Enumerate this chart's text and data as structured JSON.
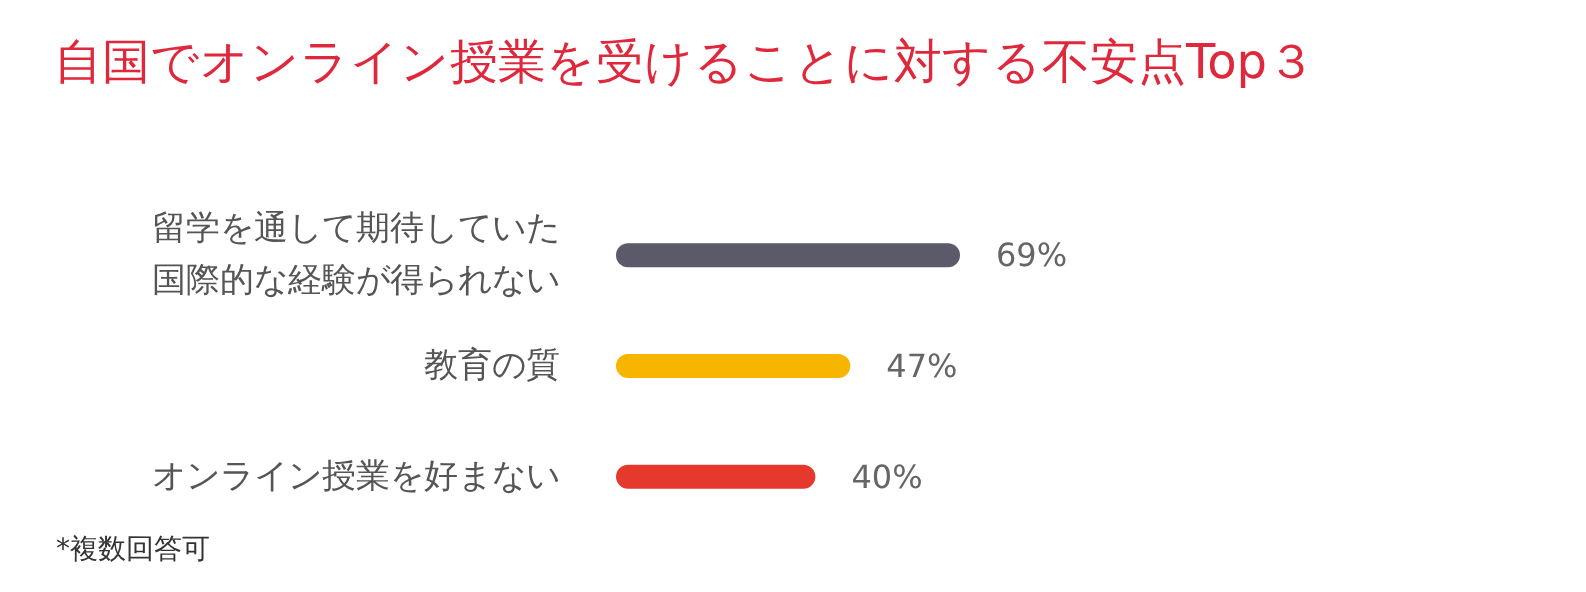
{
  "chart_data": {
    "type": "bar",
    "orientation": "horizontal",
    "title": "自国でオンライン授業を受けることに対する不安点Top３",
    "categories": [
      "留学を通して期待していた国際的な経験が得られない",
      "教育の質",
      "オンライン授業を好まない"
    ],
    "values": [
      69,
      47,
      40
    ],
    "colors": [
      "#5a5a6a",
      "#f7b500",
      "#e5392e"
    ],
    "value_labels": [
      "69%",
      "47%",
      "40%"
    ],
    "annotations": [
      "*複数回答可"
    ]
  }
}
